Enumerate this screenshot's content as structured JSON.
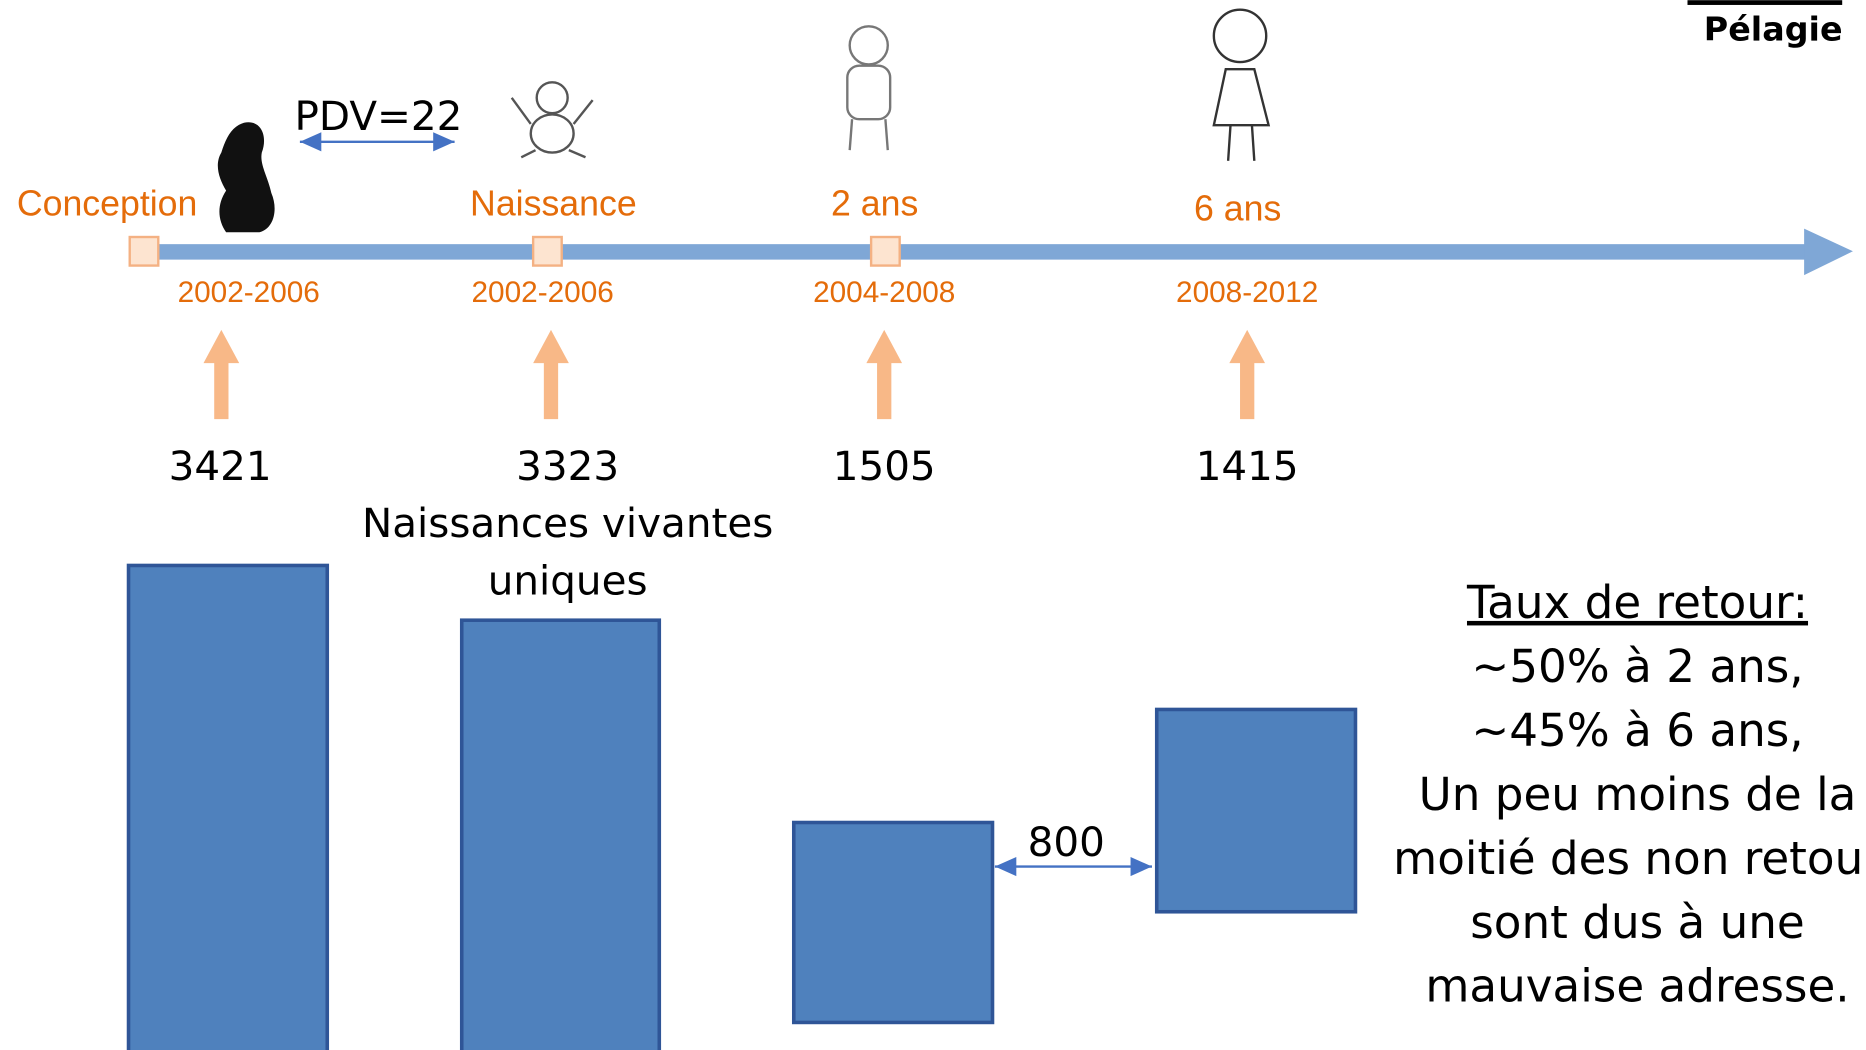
{
  "header": {
    "tag": "Pélagie"
  },
  "timeline": {
    "pdv": "PDV=22",
    "stages": [
      {
        "label": "Conception",
        "period": "2002-2006",
        "count": 3421
      },
      {
        "label": "Naissance",
        "period": "2002-2006",
        "count": 3323
      },
      {
        "label": "2 ans",
        "period": "2004-2008",
        "count": 1505
      },
      {
        "label": "6 ans",
        "period": "2008-2012",
        "count": 1415
      }
    ],
    "births_note": [
      "Naissances vivantes",
      "uniques"
    ]
  },
  "gap_label": 800,
  "summary": {
    "title": "Taux de retour:",
    "lines": [
      "~50% à 2 ans,",
      "~45% à 6 ans,",
      "Un peu moins de la",
      "moitié des non retour",
      "sont dus à une",
      "mauvaise adresse."
    ]
  }
}
